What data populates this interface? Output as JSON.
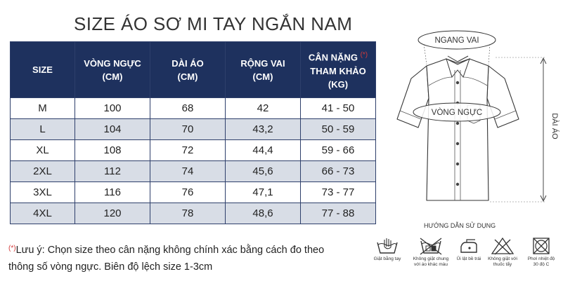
{
  "title": "SIZE ÁO SƠ MI TAY NGẮN NAM",
  "table": {
    "headers": [
      {
        "lines": [
          "SIZE"
        ],
        "star": ""
      },
      {
        "lines": [
          "VÒNG NGỰC",
          "(CM)"
        ],
        "star": ""
      },
      {
        "lines": [
          "DÀI ÁO",
          "(CM)"
        ],
        "star": ""
      },
      {
        "lines": [
          "RỘNG VAI",
          "(CM)"
        ],
        "star": ""
      },
      {
        "lines": [
          "CÂN NẶNG",
          "THAM KHẢO",
          "(KG)"
        ],
        "star": "(*)"
      }
    ],
    "rows": [
      [
        "M",
        "100",
        "68",
        "42",
        "41 - 50"
      ],
      [
        "L",
        "104",
        "70",
        "43,2",
        "50 - 59"
      ],
      [
        "XL",
        "108",
        "72",
        "44,4",
        "59 - 66"
      ],
      [
        "2XL",
        "112",
        "74",
        "45,6",
        "66 - 73"
      ],
      [
        "3XL",
        "116",
        "76",
        "47,1",
        "73 - 77"
      ],
      [
        "4XL",
        "120",
        "78",
        "48,6",
        "77 - 88"
      ]
    ]
  },
  "note": {
    "mark": "(*)",
    "line1": "Lưu ý: Chọn size theo cân nặng không chính xác bằng cách đo theo",
    "line2": "thông số vòng ngực. Biên độ lệch size 1-3cm"
  },
  "shirt": {
    "shoulder_label": "NGANG VAI",
    "chest_label": "VÒNG NGỰC",
    "length_label": "DÀI ÁO"
  },
  "guide": {
    "title": "HƯỚNG DẪN SỬ DỤNG",
    "items": [
      {
        "icon": "hand-wash-icon",
        "label_lines": [
          "Giặt bằng tay"
        ]
      },
      {
        "icon": "no-mixed-wash-icon",
        "label_lines": [
          "Không giặt chung",
          "với áo khác màu"
        ]
      },
      {
        "icon": "iron-low-icon",
        "label_lines": [
          "Ủi lật bề trái"
        ]
      },
      {
        "icon": "no-bleach-icon",
        "label_lines": [
          "Không giặt với",
          "thuốc tẩy"
        ]
      },
      {
        "icon": "no-tumble-dry-icon",
        "label_lines": [
          "Phơi nhiệt độ",
          "30 độ C"
        ]
      }
    ]
  }
}
